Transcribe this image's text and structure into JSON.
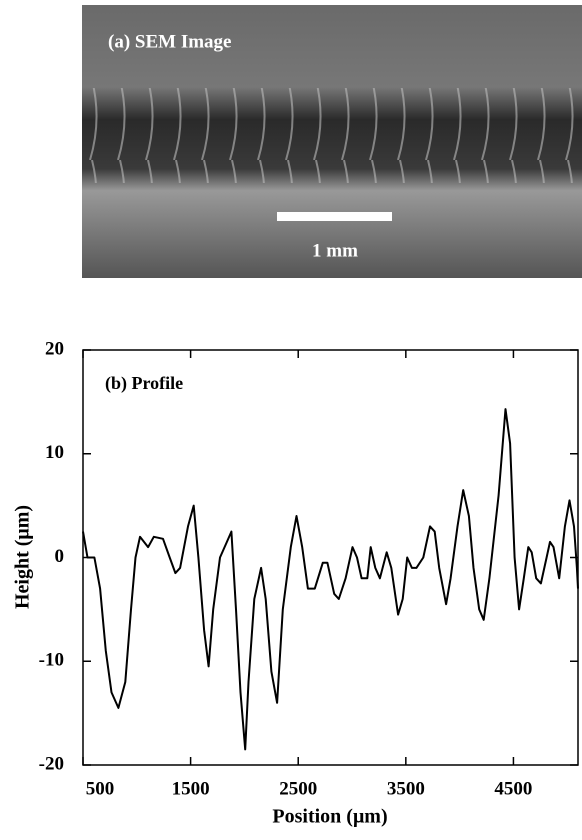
{
  "image_labels": {
    "panel": "(a)  SEM Image",
    "scale_bar": "1 mm"
  },
  "chart_data": {
    "type": "line",
    "annotation": "(b)  Profile",
    "x_label": "Position (μm)",
    "y_label": "Height (μm)",
    "x": [
      500,
      542,
      606,
      659,
      712,
      765,
      829,
      893,
      946,
      988,
      1030,
      1105,
      1158,
      1243,
      1306,
      1359,
      1402,
      1476,
      1529,
      1572,
      1625,
      1667,
      1710,
      1773,
      1837,
      1879,
      1922,
      1964,
      2007,
      2038,
      2092,
      2155,
      2198,
      2251,
      2304,
      2357,
      2431,
      2484,
      2537,
      2590,
      2654,
      2728,
      2771,
      2834,
      2877,
      2940,
      3004,
      3046,
      3089,
      3142,
      3174,
      3216,
      3259,
      3322,
      3365,
      3428,
      3471,
      3513,
      3556,
      3598,
      3662,
      3725,
      3768,
      3810,
      3874,
      3916,
      3980,
      4033,
      4086,
      4129,
      4182,
      4224,
      4277,
      4362,
      4426,
      4469,
      4511,
      4553,
      4596,
      4638,
      4670,
      4712,
      4755,
      4808,
      4840,
      4872,
      4925,
      4978,
      5021,
      5063,
      5090,
      5100
    ],
    "values": [
      2.5,
      0,
      0,
      -3,
      -9,
      -13,
      -14.5,
      -12,
      -5,
      0,
      2,
      1,
      2,
      1.8,
      0,
      -1.5,
      -1,
      3,
      5,
      0,
      -7,
      -10.5,
      -5,
      0,
      1.5,
      2.5,
      -5,
      -13,
      -18.5,
      -12,
      -4,
      -1,
      -4,
      -11,
      -14,
      -5,
      1,
      4,
      1,
      -3,
      -3,
      -0.5,
      -0.5,
      -3.5,
      -4,
      -2,
      1,
      0,
      -2,
      -2,
      1,
      -1,
      -2,
      0.5,
      -1,
      -5.5,
      -4,
      0,
      -1,
      -1,
      0,
      3,
      2.5,
      -1,
      -4.5,
      -2,
      3,
      6.5,
      4,
      -1,
      -5,
      -6,
      -2,
      6,
      14.3,
      11,
      0,
      -5,
      -2,
      1,
      0.5,
      -2,
      -2.5,
      0,
      1.5,
      1,
      -2,
      3,
      5.5,
      3,
      -1,
      -3
    ],
    "color": "#000000",
    "xlim": [
      500,
      5100
    ],
    "xticks": [
      500,
      1500,
      2500,
      3500,
      4500
    ],
    "ylim": [
      -20,
      20
    ],
    "yticks": [
      -20,
      -10,
      0,
      10,
      20
    ],
    "grid": false
  }
}
